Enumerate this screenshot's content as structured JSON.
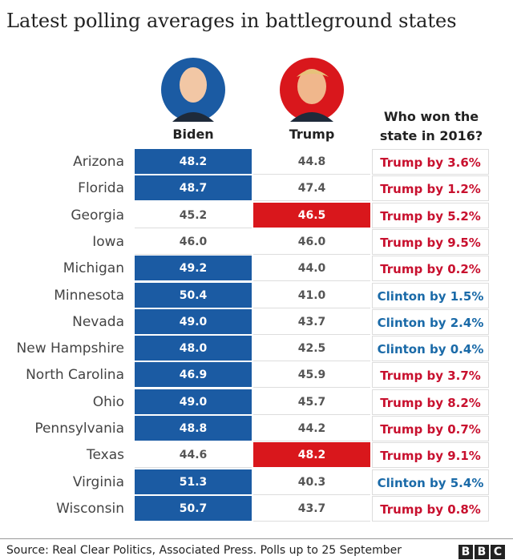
{
  "header": {
    "title": "Latest polling averages in battleground states"
  },
  "table": {
    "columns": [
      "Biden",
      "Trump",
      "Who won the state in 2016?"
    ],
    "highlight_colors": [
      "#1b5ba3",
      "#d9171c"
    ],
    "rows": [
      {
        "state": "Arizona",
        "biden": "48.2",
        "trump": "44.8",
        "won": "Trump by 3.6%",
        "won_color": "#c8102e"
      },
      {
        "state": "Florida",
        "biden": "48.7",
        "trump": "47.4",
        "won": "Trump by 1.2%",
        "won_color": "#c8102e"
      },
      {
        "state": "Georgia",
        "biden": "45.2",
        "trump": "46.5",
        "won": "Trump by 5.2%",
        "won_color": "#c8102e"
      },
      {
        "state": "Iowa",
        "biden": "46.0",
        "trump": "46.0",
        "won": "Trump by 9.5%",
        "won_color": "#c8102e"
      },
      {
        "state": "Michigan",
        "biden": "49.2",
        "trump": "44.0",
        "won": "Trump by 0.2%",
        "won_color": "#c8102e"
      },
      {
        "state": "Minnesota",
        "biden": "50.4",
        "trump": "41.0",
        "won": "Clinton by 1.5%",
        "won_color": "#1a6aa8"
      },
      {
        "state": "Nevada",
        "biden": "49.0",
        "trump": "43.7",
        "won": "Clinton by 2.4%",
        "won_color": "#1a6aa8"
      },
      {
        "state": "New Hampshire",
        "biden": "48.0",
        "trump": "42.5",
        "won": "Clinton by 0.4%",
        "won_color": "#1a6aa8"
      },
      {
        "state": "North Carolina",
        "biden": "46.9",
        "trump": "45.9",
        "won": "Trump by 3.7%",
        "won_color": "#c8102e"
      },
      {
        "state": "Ohio",
        "biden": "49.0",
        "trump": "45.7",
        "won": "Trump by 8.2%",
        "won_color": "#c8102e"
      },
      {
        "state": "Pennsylvania",
        "biden": "48.8",
        "trump": "44.2",
        "won": "Trump by 0.7%",
        "won_color": "#c8102e"
      },
      {
        "state": "Texas",
        "biden": "44.6",
        "trump": "48.2",
        "won": "Trump by 9.1%",
        "won_color": "#c8102e"
      },
      {
        "state": "Virginia",
        "biden": "51.3",
        "trump": "40.3",
        "won": "Clinton by 5.4%",
        "won_color": "#1a6aa8"
      },
      {
        "state": "Wisconsin",
        "biden": "50.7",
        "trump": "43.7",
        "won": "Trump by 0.8%",
        "won_color": "#c8102e"
      }
    ]
  },
  "footer": {
    "source": "Source: Real Clear Politics, Associated Press. Polls up to 25 September",
    "logo": [
      "B",
      "B",
      "C"
    ]
  }
}
